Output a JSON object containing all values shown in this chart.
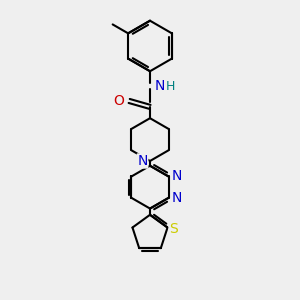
{
  "bg_color": "#efefef",
  "bond_color": "#000000",
  "bond_lw": 1.5,
  "atom_colors": {
    "N": "#0000cc",
    "O": "#cc0000",
    "S": "#cccc00",
    "NH": "#008080",
    "C": "#000000"
  },
  "font_size": 8,
  "figsize": [
    3.0,
    3.0
  ],
  "dpi": 100
}
